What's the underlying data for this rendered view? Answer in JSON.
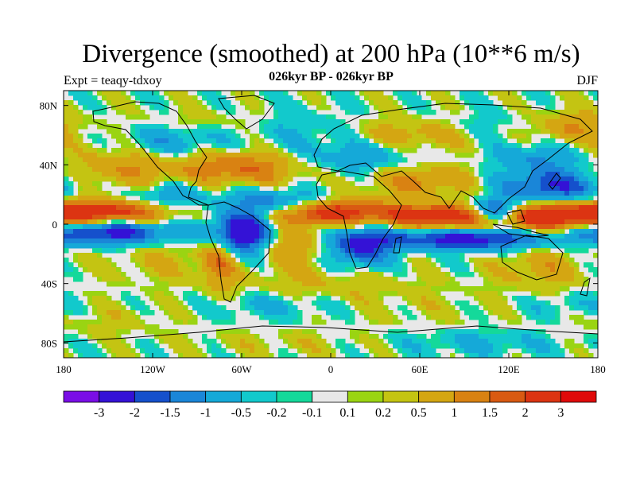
{
  "chart_data": {
    "type": "heatmap",
    "title": "Divergence (smoothed) at 200 hPa (10**6 m/s)",
    "subtitle": "026kyr BP - 026kyr BP",
    "left_label": "Expt = teaqy-tdxoy",
    "right_label": "DJF",
    "x_ticks": [
      {
        "value": -180,
        "label": "180"
      },
      {
        "value": -120,
        "label": "120W"
      },
      {
        "value": -60,
        "label": "60W"
      },
      {
        "value": 0,
        "label": "0"
      },
      {
        "value": 60,
        "label": "60E"
      },
      {
        "value": 120,
        "label": "120E"
      },
      {
        "value": 180,
        "label": "180"
      }
    ],
    "y_ticks": [
      {
        "value": 80,
        "label": "80N"
      },
      {
        "value": 40,
        "label": "40N"
      },
      {
        "value": 0,
        "label": "0"
      },
      {
        "value": -40,
        "label": "40S"
      },
      {
        "value": -80,
        "label": "80S"
      }
    ],
    "xlim": [
      -180,
      180
    ],
    "ylim": [
      -90,
      90
    ],
    "colorbar": {
      "colors": [
        "#7a0ee6",
        "#3412d6",
        "#1550cc",
        "#1a86d8",
        "#15a9d8",
        "#12c9cc",
        "#14d99a",
        "#e8e8e8",
        "#9ad412",
        "#c4c412",
        "#d4a612",
        "#d98212",
        "#d95a12",
        "#dc3412",
        "#e00a0a"
      ],
      "labels": [
        "-3",
        "-2",
        "-1.5",
        "-1",
        "-0.5",
        "-0.2",
        "-0.1",
        "0.1",
        "0.2",
        "0.5",
        "1",
        "1.5",
        "2",
        "3"
      ]
    },
    "blobs": [
      {
        "lon": -150,
        "lat": 8,
        "rx": 32,
        "ry": 6,
        "v": 2.5
      },
      {
        "lon": -150,
        "lat": -5,
        "rx": 32,
        "ry": 6,
        "v": -2.5
      },
      {
        "lon": -112,
        "lat": 18,
        "rx": 22,
        "ry": 7,
        "v": -1.2
      },
      {
        "lon": -140,
        "lat": 38,
        "rx": 28,
        "ry": 12,
        "v": 1.0
      },
      {
        "lon": -110,
        "lat": 55,
        "rx": 25,
        "ry": 8,
        "v": -1.0
      },
      {
        "lon": -85,
        "lat": 70,
        "rx": 35,
        "ry": 5,
        "v": 0.3
      },
      {
        "lon": -60,
        "lat": -5,
        "rx": 14,
        "ry": 10,
        "v": -3.0
      },
      {
        "lon": -75,
        "lat": -25,
        "rx": 8,
        "ry": 14,
        "v": 1.2
      },
      {
        "lon": -60,
        "lat": 38,
        "rx": 30,
        "ry": 8,
        "v": 1.5
      },
      {
        "lon": -35,
        "lat": 15,
        "rx": 22,
        "ry": 6,
        "v": -1.5
      },
      {
        "lon": -25,
        "lat": -15,
        "rx": 15,
        "ry": 10,
        "v": 1.0
      },
      {
        "lon": 0,
        "lat": 8,
        "rx": 30,
        "ry": 6,
        "v": 2.5
      },
      {
        "lon": 20,
        "lat": -15,
        "rx": 15,
        "ry": 10,
        "v": -2.0
      },
      {
        "lon": 20,
        "lat": 45,
        "rx": 30,
        "ry": 8,
        "v": -1.0
      },
      {
        "lon": 60,
        "lat": 30,
        "rx": 25,
        "ry": 8,
        "v": 1.2
      },
      {
        "lon": 80,
        "lat": 5,
        "rx": 30,
        "ry": 6,
        "v": 2.5
      },
      {
        "lon": 90,
        "lat": -10,
        "rx": 40,
        "ry": 5,
        "v": -2.5
      },
      {
        "lon": 110,
        "lat": 8,
        "rx": 12,
        "ry": 6,
        "v": -3.0
      },
      {
        "lon": 150,
        "lat": 5,
        "rx": 28,
        "ry": 7,
        "v": 2.5
      },
      {
        "lon": 150,
        "lat": 25,
        "rx": 25,
        "ry": 8,
        "v": -2.0
      },
      {
        "lon": 140,
        "lat": 45,
        "rx": 22,
        "ry": 7,
        "v": -1.0
      },
      {
        "lon": 160,
        "lat": 65,
        "rx": 20,
        "ry": 8,
        "v": 1.0
      },
      {
        "lon": 100,
        "lat": 65,
        "rx": 30,
        "ry": 8,
        "v": -0.5
      },
      {
        "lon": 60,
        "lat": 60,
        "rx": 30,
        "ry": 8,
        "v": 1.0
      },
      {
        "lon": -20,
        "lat": 65,
        "rx": 25,
        "ry": 10,
        "v": -0.5
      },
      {
        "lon": 140,
        "lat": -30,
        "rx": 20,
        "ry": 10,
        "v": 0.8
      },
      {
        "lon": -110,
        "lat": -25,
        "rx": 30,
        "ry": 10,
        "v": 0.5
      },
      {
        "lon": 0,
        "lat": -40,
        "rx": 40,
        "ry": 8,
        "v": 0.5
      },
      {
        "lon": -150,
        "lat": -65,
        "rx": 30,
        "ry": 8,
        "v": 0.3
      },
      {
        "lon": 60,
        "lat": -55,
        "rx": 40,
        "ry": 10,
        "v": 0.2
      },
      {
        "lon": -40,
        "lat": -55,
        "rx": 30,
        "ry": 6,
        "v": -0.6
      },
      {
        "lon": 160,
        "lat": -55,
        "rx": 20,
        "ry": 6,
        "v": -0.5
      },
      {
        "lon": 100,
        "lat": -80,
        "rx": 40,
        "ry": 6,
        "v": -0.6
      },
      {
        "lon": -30,
        "lat": -80,
        "rx": 40,
        "ry": 6,
        "v": 0.3
      }
    ]
  }
}
